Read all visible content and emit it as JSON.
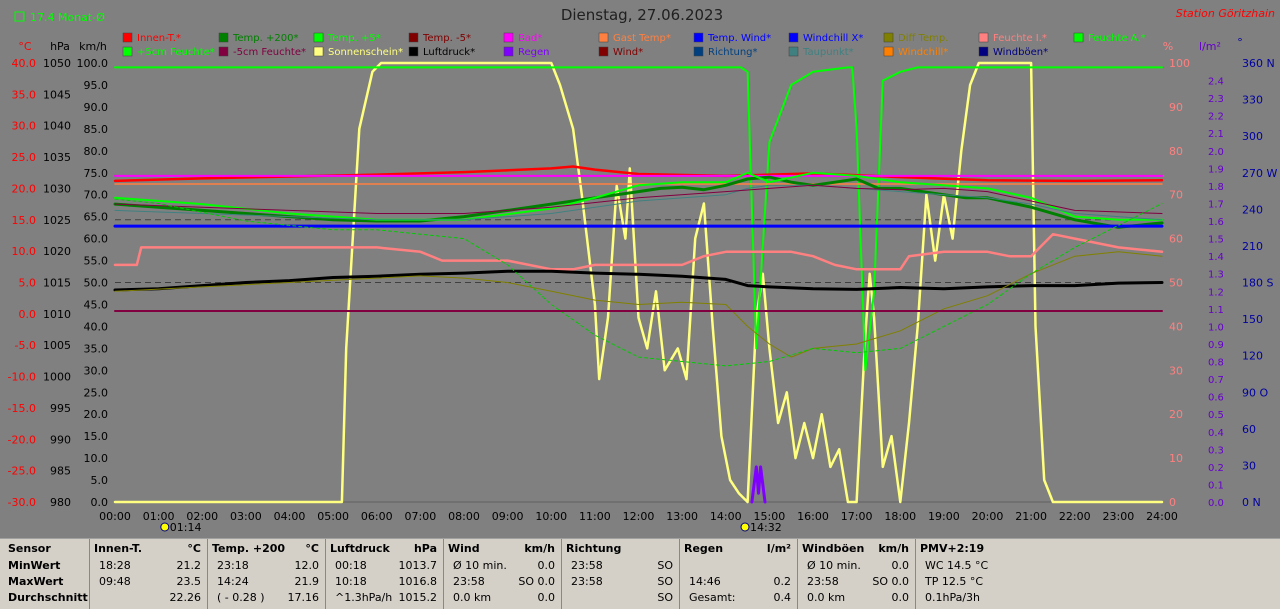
{
  "title": "Dienstag, 27.06.2023",
  "station": "Station Göritzhain",
  "month_avg_label": "17.4 Monat-Ø",
  "units": {
    "celsius": "°C",
    "hpa": "hPa",
    "kmh": "km/h",
    "percent": "%",
    "rain": "l/m²",
    "degree": "°"
  },
  "colors": {
    "bg": "#808080",
    "temp_axis": "#ff0000",
    "hpa_axis": "#000000",
    "kmh_axis": "#000000",
    "pct_axis": "#ff8080",
    "rain_axis": "#6600cc",
    "dir_axis": "#0000a0",
    "month": "#00ff00"
  },
  "legend_row1": [
    {
      "label": "Innen-T.*",
      "color": "#ff0000"
    },
    {
      "label": "Temp. +200*",
      "color": "#008000"
    },
    {
      "label": "Temp. +5*",
      "color": "#00ff00"
    },
    {
      "label": "Temp. -5*",
      "color": "#800000"
    },
    {
      "label": "Bad*",
      "color": "#ff00ff"
    },
    {
      "label": "Gast Temp*",
      "color": "#ff8040"
    },
    {
      "label": "Temp. Wind*",
      "color": "#0000ff"
    },
    {
      "label": "Windchill X*",
      "color": "#0000ff"
    },
    {
      "label": "Diff Temp.",
      "color": "#808000"
    },
    {
      "label": "Feuchte I.*",
      "color": "#ff8080"
    },
    {
      "label": "Feuchte A.*",
      "color": "#00ff00"
    }
  ],
  "legend_row2": [
    {
      "label": "+5cm Feuchte*",
      "color": "#00ff00"
    },
    {
      "label": "-5cm Feuchte*",
      "color": "#800040"
    },
    {
      "label": "Sonnenschein*",
      "color": "#ffff80"
    },
    {
      "label": "Luftdruck*",
      "color": "#000000"
    },
    {
      "label": "Regen",
      "color": "#8000ff"
    },
    {
      "label": "Wind*",
      "color": "#800000"
    },
    {
      "label": "Richtung*",
      "color": "#004080"
    },
    {
      "label": "Taupunkt*",
      "color": "#408080"
    },
    {
      "label": "Windchill*",
      "color": "#ff8000"
    },
    {
      "label": "Windböen*",
      "color": "#000080"
    }
  ],
  "axes": {
    "temp": [
      "40.0",
      "35.0",
      "30.0",
      "25.0",
      "20.0",
      "15.0",
      "10.0",
      "5.0",
      "0.0",
      "-5.0",
      "-10.0",
      "-15.0",
      "-20.0",
      "-25.0",
      "-30.0"
    ],
    "hpa": [
      "1050",
      "1045",
      "1040",
      "1035",
      "1030",
      "1025",
      "1020",
      "1015",
      "1010",
      "1005",
      "1000",
      "995",
      "990",
      "985",
      "980"
    ],
    "kmh": [
      "100.0",
      "95.0",
      "90.0",
      "85.0",
      "80.0",
      "75.0",
      "70.0",
      "65.0",
      "60.0",
      "55.0",
      "50.0",
      "45.0",
      "40.0",
      "35.0",
      "30.0",
      "25.0",
      "20.0",
      "15.0",
      "10.0",
      "5.0",
      "0.0"
    ],
    "pct": [
      "100",
      "90",
      "80",
      "70",
      "60",
      "50",
      "40",
      "30",
      "20",
      "10",
      "0"
    ],
    "rain": [
      "2.4",
      "2.3",
      "2.2",
      "2.1",
      "2.0",
      "1.9",
      "1.8",
      "1.7",
      "1.6",
      "1.5",
      "1.4",
      "1.3",
      "1.2",
      "1.1",
      "1.0",
      "0.9",
      "0.8",
      "0.7",
      "0.6",
      "0.5",
      "0.4",
      "0.3",
      "0.2",
      "0.1",
      "0.0"
    ],
    "dir": [
      "360 N",
      "330",
      "300",
      "270 W",
      "240",
      "210",
      "180 S",
      "150",
      "120",
      "90 O",
      "60",
      "30",
      "0 N"
    ],
    "time": [
      "00:00",
      "01:00",
      "02:00",
      "03:00",
      "04:00",
      "05:00",
      "06:00",
      "07:00",
      "08:00",
      "09:00",
      "10:00",
      "11:00",
      "12:00",
      "13:00",
      "14:00",
      "15:00",
      "16:00",
      "17:00",
      "18:00",
      "19:00",
      "20:00",
      "21:00",
      "22:00",
      "23:00",
      "24:00"
    ],
    "sunrise": "01:14",
    "sunset": "14:32"
  },
  "chart_data": {
    "type": "line",
    "title": "Dienstag, 27.06.2023",
    "x_unit": "hour",
    "xlim": [
      0,
      24
    ],
    "ylim_kmh": [
      0,
      100
    ],
    "series": [
      {
        "name": "Sonnenschein*",
        "axis": "percent",
        "color": "#ffff80",
        "width": 2.5,
        "x": [
          0,
          5.2,
          5.3,
          5.6,
          5.9,
          6.1,
          10,
          10.2,
          10.5,
          10.7,
          11,
          11.1,
          11.3,
          11.5,
          11.7,
          11.8,
          12,
          12.2,
          12.4,
          12.6,
          12.9,
          13.1,
          13.3,
          13.5,
          13.7,
          13.9,
          14.1,
          14.3,
          14.5,
          14.7,
          14.85,
          15,
          15.2,
          15.4,
          15.6,
          15.8,
          16,
          16.2,
          16.4,
          16.6,
          16.8,
          17.0,
          17.2,
          17.3,
          17.4,
          17.6,
          17.8,
          18.0,
          18.2,
          18.4,
          18.6,
          18.8,
          19.0,
          19.2,
          19.4,
          19.6,
          19.8,
          20.0,
          20.2,
          20.4,
          20.6,
          20.8,
          21.0,
          21.1,
          21.3,
          21.5,
          21.7,
          22,
          24
        ],
        "y": [
          0,
          0,
          35,
          85,
          98,
          100,
          100,
          95,
          85,
          70,
          45,
          28,
          42,
          72,
          60,
          76,
          42,
          35,
          48,
          30,
          35,
          28,
          60,
          68,
          40,
          15,
          5,
          2,
          0,
          42,
          52,
          35,
          18,
          25,
          10,
          18,
          10,
          20,
          8,
          12,
          0,
          0,
          38,
          52,
          42,
          8,
          15,
          0,
          18,
          40,
          70,
          55,
          70,
          60,
          80,
          95,
          100,
          100,
          100,
          100,
          100,
          100,
          100,
          40,
          5,
          0,
          0,
          0,
          0
        ]
      },
      {
        "name": "Feuchte A.*",
        "axis": "percent",
        "color": "#00ff00",
        "width": 2,
        "x": [
          0,
          14.2,
          14.3,
          14.35,
          14.5,
          14.7,
          15.0,
          15.5,
          16,
          16.8,
          16.85,
          16.9,
          17.0,
          17.2,
          17.4,
          17.6,
          18.0,
          18.4,
          19.0,
          24
        ],
        "y": [
          99,
          99,
          99,
          99,
          98,
          35,
          82,
          95,
          98,
          99,
          99,
          99,
          85,
          30,
          48,
          96,
          98,
          99,
          99,
          99
        ]
      },
      {
        "name": "Innen-T.*",
        "axis": "temp",
        "color": "#ff0000",
        "width": 2.5,
        "x": [
          0,
          2,
          4,
          6,
          8,
          10,
          10.5,
          11,
          12,
          14,
          16,
          18,
          20,
          22,
          24
        ],
        "y": [
          21.2,
          21.6,
          21.9,
          22.2,
          22.6,
          23.2,
          23.5,
          23.0,
          22.3,
          22.0,
          22.4,
          21.8,
          21.3,
          21.2,
          21.3
        ]
      },
      {
        "name": "Bad*",
        "axis": "temp",
        "color": "#ff00ff",
        "width": 2,
        "x": [
          0,
          24
        ],
        "y": [
          22.0,
          22.0
        ]
      },
      {
        "name": "Gast Temp*",
        "axis": "temp",
        "color": "#ff8040",
        "width": 1.5,
        "x": [
          0,
          24
        ],
        "y": [
          20.7,
          20.7
        ]
      },
      {
        "name": "Temp. +200*",
        "axis": "temp",
        "color": "#008000",
        "width": 3,
        "x": [
          0,
          1,
          2,
          3,
          4,
          5,
          6,
          7,
          8,
          9,
          10,
          11,
          12,
          12.5,
          13,
          13.5,
          14,
          14.5,
          15,
          15.5,
          16,
          16.5,
          17,
          17.5,
          18,
          18.5,
          19,
          19.5,
          20,
          21,
          22,
          23,
          24
        ],
        "y": [
          17.5,
          17.0,
          16.5,
          16.0,
          15.5,
          15.0,
          14.8,
          14.8,
          15.5,
          16.5,
          17.5,
          18.5,
          19.5,
          20.0,
          20.2,
          19.8,
          20.5,
          21.5,
          21.8,
          21.0,
          20.5,
          21.0,
          21.5,
          20.0,
          20.0,
          19.5,
          19.0,
          18.5,
          18.5,
          17.0,
          15.0,
          13.8,
          14.5
        ]
      },
      {
        "name": "Temp. +5*",
        "axis": "temp",
        "color": "#00ff00",
        "width": 2,
        "x": [
          0,
          2,
          4,
          6,
          8,
          10,
          11,
          12,
          13,
          14,
          14.5,
          15,
          16,
          17,
          18,
          19,
          20,
          21,
          22,
          23,
          24
        ],
        "y": [
          18.5,
          17.5,
          16.0,
          15.0,
          15.0,
          16.8,
          18.5,
          20.5,
          21.0,
          21.0,
          22.5,
          21.0,
          22.5,
          22.0,
          21.0,
          20.5,
          20.0,
          18.5,
          15.5,
          15.0,
          15.0
        ]
      },
      {
        "name": "Taupunkt*",
        "axis": "temp",
        "color": "#408080",
        "width": 1,
        "x": [
          0,
          2,
          4,
          6,
          8,
          10,
          12,
          14,
          14.5,
          15,
          16,
          17,
          18,
          19,
          20,
          21,
          22,
          24
        ],
        "y": [
          16.5,
          16.0,
          15.5,
          15.0,
          15.0,
          16.0,
          18.0,
          19.0,
          20.0,
          20.5,
          20.5,
          20.0,
          19.5,
          19.0,
          18.5,
          17.5,
          16.0,
          15.0
        ]
      },
      {
        "name": "Temp. -5*",
        "axis": "temp",
        "color": "#800040",
        "width": 1,
        "x": [
          0,
          2,
          4,
          6,
          8,
          10,
          12,
          14,
          15,
          16,
          17,
          18,
          19,
          20,
          21,
          22,
          24
        ],
        "y": [
          17.5,
          17.0,
          16.5,
          16.0,
          16.0,
          17.0,
          18.5,
          19.5,
          20.0,
          20.5,
          20.0,
          19.8,
          20.0,
          19.5,
          18.0,
          16.5,
          16.0
        ]
      },
      {
        "name": "Temp. Wind*",
        "axis": "temp",
        "color": "#0000ff",
        "width": 3,
        "x": [
          0,
          24
        ],
        "y": [
          14.0,
          14.0
        ]
      },
      {
        "name": "Feuchte I.*",
        "axis": "percent",
        "color": "#ff8080",
        "width": 2.5,
        "x": [
          0,
          0.5,
          0.6,
          1.5,
          2,
          4,
          6,
          7,
          7.5,
          8,
          9,
          10,
          10.5,
          11,
          12,
          13,
          13.5,
          14,
          15,
          15.5,
          16,
          16.5,
          17,
          18,
          18.2,
          19,
          20,
          20.5,
          21,
          21.5,
          22,
          23,
          24
        ],
        "y": [
          54,
          54,
          58,
          58,
          58,
          58,
          58,
          57,
          55,
          55,
          55,
          53,
          53,
          54,
          54,
          54,
          56,
          57,
          57,
          57,
          56,
          54,
          53,
          53,
          56,
          57,
          57,
          56,
          56,
          61,
          60,
          58,
          57
        ]
      },
      {
        "name": "Luftdruck*",
        "axis": "hpa",
        "color": "#000000",
        "width": 3,
        "x": [
          0,
          1,
          2,
          3,
          4,
          5,
          6,
          7,
          8,
          9,
          10,
          11,
          12,
          13,
          14,
          14.5,
          15,
          16,
          17,
          18,
          19,
          20,
          21,
          22,
          23,
          24
        ],
        "y": [
          1013.8,
          1014.0,
          1014.5,
          1015.0,
          1015.3,
          1015.8,
          1016.0,
          1016.3,
          1016.5,
          1016.8,
          1016.8,
          1016.5,
          1016.3,
          1016.0,
          1015.5,
          1014.5,
          1014.3,
          1014.0,
          1013.9,
          1014.2,
          1014.0,
          1014.3,
          1014.5,
          1014.5,
          1014.9,
          1015.0
        ]
      },
      {
        "name": "Diff Temp.",
        "axis": "percent",
        "color": "#808000",
        "width": 1,
        "x": [
          0,
          1,
          2,
          3,
          4,
          5,
          6,
          7,
          8,
          9,
          10,
          11,
          12,
          13,
          14,
          14.5,
          15,
          15.5,
          16,
          17,
          18,
          19,
          20,
          21,
          22,
          23,
          24
        ],
        "y": [
          48,
          48.5,
          49,
          49.5,
          50,
          50.5,
          51,
          51.5,
          51,
          50,
          48,
          46,
          45,
          45.5,
          45,
          40,
          36,
          33,
          35,
          36,
          39,
          44,
          47,
          52,
          56,
          57,
          56
        ]
      },
      {
        "name": "+5cm Feuchte*",
        "axis": "percent",
        "color": "#00cc00",
        "width": 1,
        "dash": "3,3",
        "x": [
          0,
          1,
          2,
          3,
          4,
          5,
          6,
          7,
          8,
          9,
          10,
          11,
          12,
          13,
          14,
          15,
          16,
          17,
          18,
          19,
          20,
          21,
          22,
          23,
          24
        ],
        "y": [
          69,
          68,
          66,
          64,
          63,
          62,
          62,
          61,
          60,
          54,
          45,
          38,
          33,
          32,
          31,
          32,
          35,
          34,
          35,
          40,
          45,
          52,
          58,
          63,
          68
        ]
      },
      {
        "name": "Wind*",
        "axis": "kmh",
        "color": "#800040",
        "width": 2,
        "x": [
          0,
          24
        ],
        "y": [
          43.5,
          43.5
        ]
      },
      {
        "name": "Regen",
        "axis": "rain",
        "color": "#8000ff",
        "width": 3,
        "x": [
          14.6,
          14.65,
          14.7,
          14.75,
          14.8,
          14.85,
          14.9
        ],
        "y": [
          0,
          0.1,
          0.2,
          0.05,
          0.2,
          0.1,
          0
        ]
      }
    ]
  },
  "table": {
    "headers": [
      {
        "label": "Sensor",
        "unit": ""
      },
      {
        "label": "Innen-T.",
        "unit": "°C"
      },
      {
        "label": "Temp. +200",
        "unit": "°C"
      },
      {
        "label": "Luftdruck",
        "unit": "hPa"
      },
      {
        "label": "Wind",
        "unit": "km/h"
      },
      {
        "label": "Richtung",
        "unit": ""
      },
      {
        "label": "Regen",
        "unit": "l/m²"
      },
      {
        "label": "Windböen",
        "unit": "km/h"
      },
      {
        "label": "PMV+2:19",
        "unit": ""
      }
    ],
    "row_labels": [
      "MinWert",
      "MaxWert",
      "Durchschnitt"
    ],
    "cols": [
      {
        "a": [
          "18:28",
          "09:48",
          ""
        ],
        "b": [
          "21.2",
          "23.5",
          "22.26"
        ]
      },
      {
        "a": [
          "23:18",
          "14:24",
          "( - 0.28 )"
        ],
        "b": [
          "12.0",
          "21.9",
          "17.16"
        ]
      },
      {
        "a": [
          "00:18",
          "10:18",
          "^1.3hPa/h"
        ],
        "b": [
          "1013.7",
          "1016.8",
          "1015.2"
        ]
      },
      {
        "a": [
          "Ø 10 min.",
          "23:58",
          "0.0 km"
        ],
        "b": [
          "0.0",
          "SO 0.0",
          "0.0"
        ]
      },
      {
        "a": [
          "23:58",
          "23:58",
          ""
        ],
        "b": [
          "SO",
          "SO",
          "SO"
        ]
      },
      {
        "a": [
          "",
          "14:46",
          "Gesamt:"
        ],
        "b": [
          "",
          "0.2",
          "0.4"
        ]
      },
      {
        "a": [
          "Ø 10 min.",
          "23:58",
          "0.0 km"
        ],
        "b": [
          "0.0",
          "SO 0.0",
          "0.0"
        ]
      },
      {
        "a": [
          "WC 14.5 °C",
          "TP 12.5 °C",
          "0.1hPa/3h"
        ],
        "b": [
          "",
          "",
          ""
        ]
      }
    ]
  }
}
